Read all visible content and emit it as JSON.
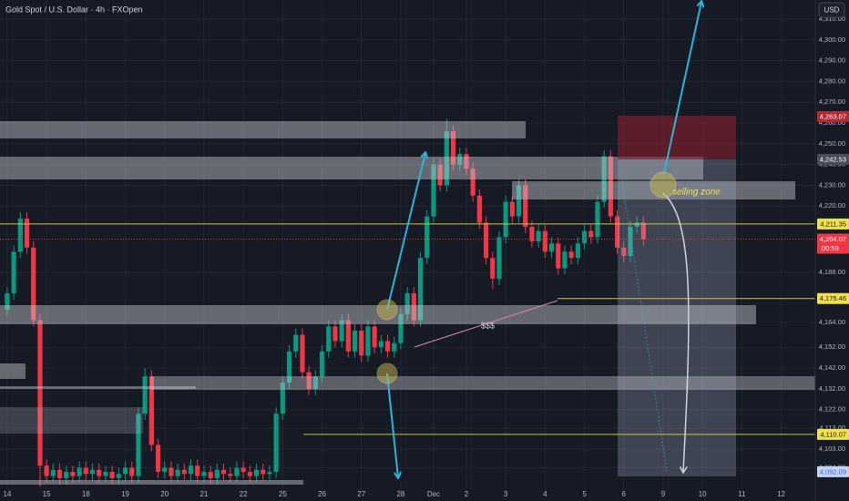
{
  "chart_data": {
    "type": "candlestick",
    "title": "Gold Spot / U.S. Dollar · 4h · FXOpen",
    "currency": "USD",
    "annotations": [
      "selling zone",
      "$$$"
    ],
    "up_color": "#089981",
    "down_color": "#f23645",
    "grid": true,
    "xlim": [
      -1.1,
      123.2
    ],
    "xticks": [
      {
        "value": 0,
        "label": "14"
      },
      {
        "value": 6,
        "label": "15"
      },
      {
        "value": 12,
        "label": "18"
      },
      {
        "value": 18,
        "label": "19"
      },
      {
        "value": 24,
        "label": "20"
      },
      {
        "value": 30,
        "label": "21"
      },
      {
        "value": 36,
        "label": "22"
      },
      {
        "value": 42,
        "label": "25"
      },
      {
        "value": 48,
        "label": "26"
      },
      {
        "value": 54,
        "label": "27"
      },
      {
        "value": 60,
        "label": "28"
      },
      {
        "value": 65,
        "label": "Dec"
      },
      {
        "value": 70,
        "label": "2"
      },
      {
        "value": 76,
        "label": "3"
      },
      {
        "value": 82,
        "label": "4"
      },
      {
        "value": 88,
        "label": "5"
      },
      {
        "value": 94,
        "label": "6"
      },
      {
        "value": 100,
        "label": "9"
      },
      {
        "value": 106,
        "label": "10"
      },
      {
        "value": 112,
        "label": "11"
      },
      {
        "value": 118,
        "label": "12"
      }
    ],
    "ylim": [
      4082.37,
      4319.21
    ],
    "yticks": [
      {
        "value": 4310,
        "label": "4,310.00"
      },
      {
        "value": 4300,
        "label": "4,300.00"
      },
      {
        "value": 4290,
        "label": "4,290.00"
      },
      {
        "value": 4280,
        "label": "4,280.00"
      },
      {
        "value": 4270,
        "label": "4,270.00"
      },
      {
        "value": 4260,
        "label": "4,260.00"
      },
      {
        "value": 4250,
        "label": "4,250.00"
      },
      {
        "value": 4240,
        "label": "4,240.00"
      },
      {
        "value": 4230,
        "label": "4,230.00"
      },
      {
        "value": 4220,
        "label": "4,220.00"
      },
      {
        "value": 4188,
        "label": "4,188.00"
      },
      {
        "value": 4164,
        "label": "4,164.00"
      },
      {
        "value": 4152,
        "label": "4,152.00"
      },
      {
        "value": 4142,
        "label": "4,142.00"
      },
      {
        "value": 4132,
        "label": "4,132.00"
      },
      {
        "value": 4122,
        "label": "4,122.00"
      },
      {
        "value": 4113,
        "label": "4,113.00"
      },
      {
        "value": 4103,
        "label": "4,103.00"
      },
      {
        "value": 4094,
        "label": "4,094.00"
      }
    ],
    "price_labels": [
      {
        "value": 4263.07,
        "label": "4,263.07",
        "color": "#b22833"
      },
      {
        "value": 4242.53,
        "label": "4,242.53",
        "color": "#4a4e5a"
      },
      {
        "value": 4211.35,
        "label": "4,211.35",
        "color": "#f0e04a"
      },
      {
        "value": 4204.07,
        "label": "4,204.07",
        "color": "#f23645",
        "countdown": "00:59"
      },
      {
        "value": 4175.46,
        "label": "4,175.46",
        "color": "#f0e04a"
      },
      {
        "value": 4110.07,
        "label": "4,110.07",
        "color": "#f0e04a"
      },
      {
        "value": 4092.09,
        "label": "4,092.09",
        "color": "#c5d4f5"
      }
    ],
    "open": [
      4170,
      4178,
      4198,
      4214,
      4200,
      4165,
      4095,
      4090,
      4093,
      4089,
      4092,
      4090,
      4094,
      4091,
      4093,
      4090,
      4092,
      4089,
      4091,
      4094,
      4090,
      4120,
      4138,
      4105,
      4092,
      4094,
      4090,
      4093,
      4091,
      4095,
      4090,
      4092,
      4089,
      4093,
      4091,
      4090,
      4094,
      4092,
      4090,
      4093,
      4091,
      4092,
      4120,
      4135,
      4150,
      4158,
      4140,
      4132,
      4138,
      4150,
      4162,
      4155,
      4165,
      4150,
      4160,
      4148,
      4162,
      4152,
      4155,
      4150,
      4154,
      4168,
      4178,
      4165,
      4195,
      4215,
      4240,
      4230,
      4256,
      4240,
      4245,
      4238,
      4225,
      4212,
      4195,
      4185,
      4205,
      4222,
      4215,
      4230,
      4210,
      4203,
      4208,
      4198,
      4202,
      4190,
      4198,
      4195,
      4202,
      4208,
      4205,
      4222,
      4244,
      4215,
      4200,
      4196,
      4210,
      4212
    ],
    "high": [
      4181,
      4201,
      4217,
      4217,
      4203,
      4168,
      4098,
      4096,
      4096,
      4095,
      4095,
      4097,
      4097,
      4096,
      4096,
      4095,
      4095,
      4094,
      4097,
      4097,
      4123,
      4142,
      4141,
      4108,
      4097,
      4097,
      4096,
      4096,
      4098,
      4098,
      4095,
      4095,
      4096,
      4096,
      4094,
      4097,
      4097,
      4095,
      4096,
      4096,
      4095,
      4123,
      4138,
      4153,
      4161,
      4161,
      4143,
      4141,
      4153,
      4165,
      4165,
      4168,
      4168,
      4163,
      4163,
      4165,
      4165,
      4158,
      4158,
      4157,
      4171,
      4181,
      4181,
      4198,
      4218,
      4243,
      4243,
      4262,
      4259,
      4248,
      4248,
      4241,
      4228,
      4215,
      4198,
      4208,
      4225,
      4225,
      4233,
      4233,
      4213,
      4211,
      4211,
      4205,
      4205,
      4201,
      4201,
      4205,
      4211,
      4211,
      4225,
      4247,
      4247,
      4218,
      4203,
      4213,
      4215,
      4215
    ],
    "low": [
      4167,
      4175,
      4195,
      4197,
      4162,
      4085,
      4087,
      4087,
      4086,
      4086,
      4087,
      4087,
      4088,
      4088,
      4087,
      4087,
      4086,
      4086,
      4088,
      4087,
      4087,
      4117,
      4102,
      4089,
      4089,
      4087,
      4087,
      4088,
      4088,
      4087,
      4087,
      4086,
      4086,
      4088,
      4087,
      4087,
      4089,
      4087,
      4087,
      4088,
      4088,
      4089,
      4117,
      4132,
      4147,
      4137,
      4129,
      4129,
      4135,
      4147,
      4152,
      4152,
      4147,
      4147,
      4145,
      4145,
      4149,
      4149,
      4147,
      4147,
      4151,
      4165,
      4162,
      4162,
      4192,
      4212,
      4227,
      4227,
      4237,
      4237,
      4235,
      4222,
      4209,
      4192,
      4180,
      4182,
      4202,
      4212,
      4212,
      4207,
      4200,
      4200,
      4195,
      4195,
      4187,
      4187,
      4192,
      4192,
      4199,
      4202,
      4202,
      4219,
      4212,
      4197,
      4193,
      4193,
      4207,
      4201
    ],
    "close": [
      4178,
      4198,
      4214,
      4200,
      4165,
      4095,
      4090,
      4093,
      4089,
      4092,
      4090,
      4094,
      4091,
      4093,
      4090,
      4092,
      4089,
      4091,
      4094,
      4090,
      4120,
      4138,
      4105,
      4092,
      4094,
      4090,
      4093,
      4091,
      4095,
      4090,
      4092,
      4089,
      4093,
      4091,
      4090,
      4094,
      4092,
      4090,
      4093,
      4091,
      4092,
      4120,
      4135,
      4150,
      4158,
      4140,
      4132,
      4138,
      4150,
      4162,
      4155,
      4165,
      4150,
      4160,
      4148,
      4162,
      4152,
      4155,
      4150,
      4154,
      4168,
      4178,
      4165,
      4195,
      4215,
      4240,
      4230,
      4256,
      4240,
      4245,
      4238,
      4225,
      4212,
      4195,
      4185,
      4205,
      4222,
      4215,
      4230,
      4210,
      4203,
      4208,
      4198,
      4202,
      4190,
      4198,
      4195,
      4202,
      4208,
      4205,
      4222,
      4244,
      4215,
      4200,
      4196,
      4210,
      4212,
      4204.07
    ]
  }
}
